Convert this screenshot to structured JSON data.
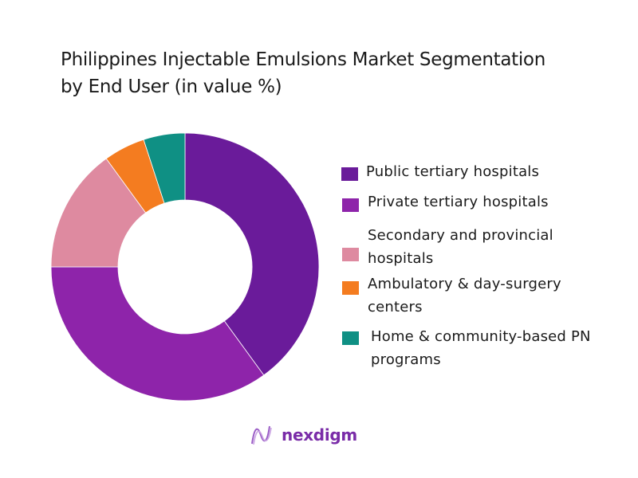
{
  "title": {
    "line1": "Philippines Injectable Emulsions Market Segmentation",
    "line2": "by End User (in value %)"
  },
  "legend": [
    {
      "label_lines": [
        "Public tertiary hospitals"
      ],
      "color": "#6a1b9a"
    },
    {
      "label_lines": [
        "Private tertiary hospitals"
      ],
      "color": "#8e24aa"
    },
    {
      "label_lines": [
        "Secondary and provincial",
        "hospitals"
      ],
      "color": "#de8aa0"
    },
    {
      "label_lines": [
        "Ambulatory & day-surgery",
        "centers"
      ],
      "color": "#f47c20"
    },
    {
      "label_lines": [
        "Home & community-based PN",
        "programs"
      ],
      "color": "#0f9084"
    }
  ],
  "brand": {
    "name": "nexdigm",
    "color": "#7a2ca8"
  },
  "chart_data": {
    "type": "pie",
    "variant": "donut",
    "title": "Philippines Injectable Emulsions Market Segmentation by End User (in value %)",
    "categories": [
      "Public tertiary hospitals",
      "Private tertiary hospitals",
      "Secondary and provincial hospitals",
      "Ambulatory & day-surgery centers",
      "Home & community-based PN programs"
    ],
    "values": [
      40,
      35,
      15,
      5,
      5
    ],
    "unit": "%",
    "colors": [
      "#6a1b9a",
      "#8e24aa",
      "#de8aa0",
      "#f47c20",
      "#0f9084"
    ],
    "start_angle_deg": 0,
    "direction": "clockwise",
    "data_labels": false,
    "legend_position": "right"
  }
}
